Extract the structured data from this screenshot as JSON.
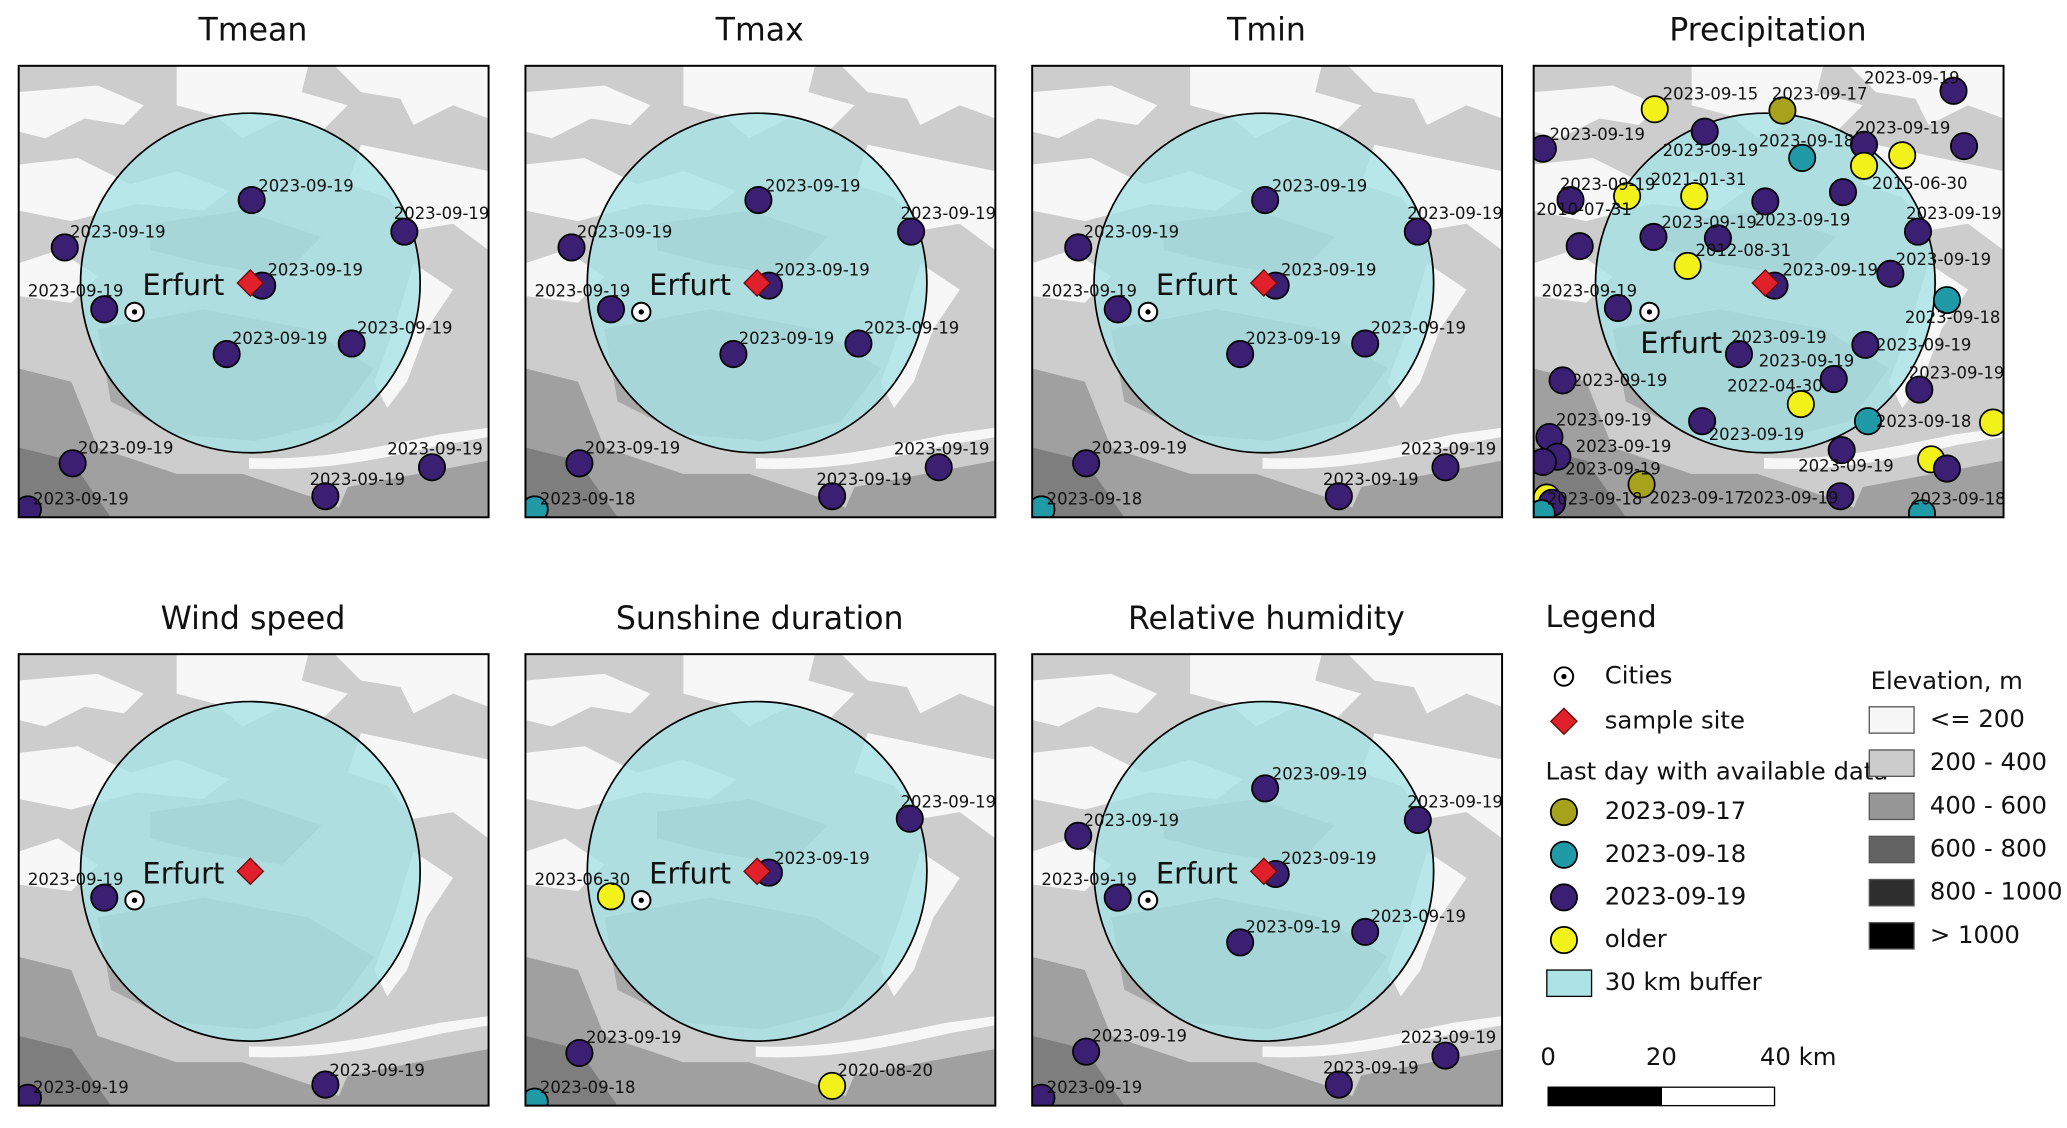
{
  "panels": [
    {
      "title": "Tmean",
      "city": "Erfurt",
      "labels": [
        "2023-09-19",
        "2023-09-19",
        "2023-09-19",
        "2023-09-19",
        "2023-09-19",
        "2023-09-19",
        "2023-09-19",
        "2023-09-19",
        "2023-09-19",
        "2023-09-19",
        "2023-09-19"
      ]
    },
    {
      "title": "Tmax",
      "city": "Erfurt",
      "labels": [
        "2023-09-19",
        "2023-09-19",
        "2023-09-19",
        "2023-09-19",
        "2023-09-19",
        "2023-09-19",
        "2023-09-19",
        "2023-09-19",
        "2023-09-19",
        "2023-09-19",
        "2023-09-18"
      ]
    },
    {
      "title": "Tmin",
      "city": "Erfurt",
      "labels": [
        "2023-09-19",
        "2023-09-19",
        "2023-09-19",
        "2023-09-19",
        "2023-09-19",
        "2023-09-19",
        "2023-09-19",
        "2023-09-19",
        "2023-09-19",
        "2023-09-19",
        "2023-09-18"
      ]
    },
    {
      "title": "Precipitation",
      "city": "Erfurt",
      "labels": [
        "2023-09-15",
        "2023-09-17",
        "2023-09-19",
        "2023-09-19",
        "2023-09-19",
        "2023-09-18",
        "2023-09-19",
        "2015-06-30",
        "2023-09-19",
        "2021-01-31",
        "2010-07-31",
        "2023-09-19",
        "2023-09-19",
        "2023-09-19",
        "2012-08-31",
        "2023-09-19",
        "2023-09-19",
        "2023-09-18",
        "2023-09-19",
        "2023-09-19",
        "2023-09-19",
        "2023-09-19",
        "2023-09-19",
        "2023-09-19",
        "2022-04-30",
        "2023-09-19",
        "2023-09-18",
        "2023-09-19",
        "2023-09-19",
        "2023-09-19",
        "2023-09-17",
        "2023-09-19",
        "2023-09-19",
        "2023-09-18",
        "2023-09-18"
      ]
    },
    {
      "title": "Wind speed",
      "city": "Erfurt",
      "labels": [
        "2023-09-19",
        "2023-09-19",
        "2023-09-19"
      ]
    },
    {
      "title": "Sunshine duration",
      "city": "Erfurt",
      "labels": [
        "2023-09-19",
        "2023-09-19",
        "2023-06-30",
        "2023-09-19",
        "2020-08-20",
        "2023-09-18"
      ]
    },
    {
      "title": "Relative humidity",
      "city": "Erfurt",
      "labels": [
        "2023-09-19",
        "2023-09-19",
        "2023-09-19",
        "2023-09-19",
        "2023-09-19",
        "2023-09-19",
        "2023-09-19",
        "2023-09-19",
        "2023-09-19",
        "2023-09-19",
        "2023-09-19"
      ]
    }
  ],
  "legend": {
    "title": "Legend",
    "cities": "Cities",
    "sample_site": "sample site",
    "availability_title": "Last day with available data",
    "availability": [
      {
        "label": "2023-09-17",
        "color": "#a6a21c"
      },
      {
        "label": "2023-09-18",
        "color": "#1f9aa6"
      },
      {
        "label": "2023-09-19",
        "color": "#3b1f72"
      },
      {
        "label": "older",
        "color": "#f2f21a"
      }
    ],
    "buffer": "30 km buffer",
    "elevation_title": "Elevation, m",
    "elevation": [
      {
        "label": "<= 200",
        "color": "#f7f7f7"
      },
      {
        "label": "200 - 400",
        "color": "#cccccc"
      },
      {
        "label": "400 - 600",
        "color": "#969696"
      },
      {
        "label": "600 - 800",
        "color": "#636363"
      },
      {
        "label": "800 - 1000",
        "color": "#2e2e2e"
      },
      {
        "label": "> 1000",
        "color": "#000000"
      }
    ]
  },
  "scale_bar": {
    "labels": [
      "0",
      "20",
      "40 km"
    ]
  }
}
